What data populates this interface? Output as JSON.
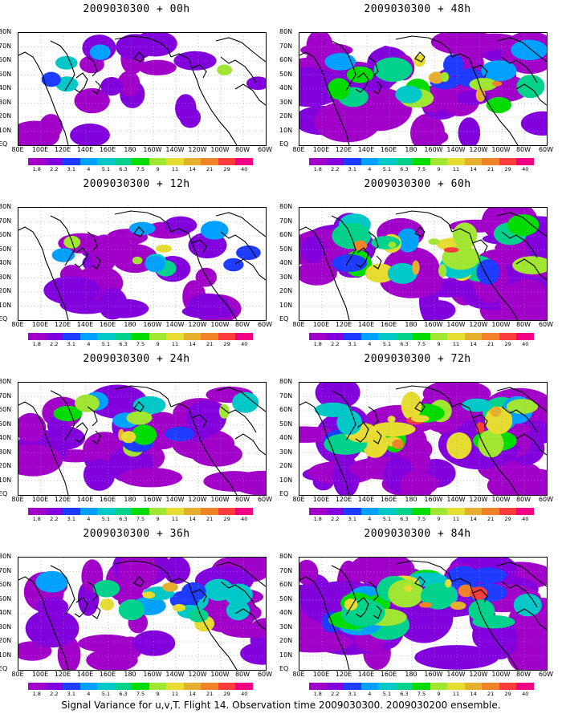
{
  "chart_data": {
    "type": "heatmap",
    "caption": "Signal Variance for u,v,T. Flight 14. Observation time 2009030300. 2009030200 ensemble.",
    "lat_labels": [
      "80N",
      "70N",
      "60N",
      "50N",
      "40N",
      "30N",
      "20N",
      "10N",
      "EQ"
    ],
    "lon_labels": [
      "80E",
      "100E",
      "120E",
      "140E",
      "160E",
      "180",
      "160W",
      "140W",
      "120W",
      "100W",
      "80W",
      "60W"
    ],
    "colorbar": {
      "levels": [
        "1.8",
        "2.2",
        "3.1",
        "4",
        "5.1",
        "6.3",
        "7.5",
        "9",
        "11",
        "14",
        "21",
        "29",
        "40"
      ],
      "colors": [
        "#a000c8",
        "#8200dc",
        "#1e3cff",
        "#00a0ff",
        "#00c8c8",
        "#00d28c",
        "#00dc00",
        "#a0e632",
        "#e6dc32",
        "#e6af2d",
        "#f08228",
        "#fa3c3c",
        "#f00082"
      ]
    },
    "panels": [
      {
        "title": "2009030300 + 00h",
        "intensity": 0.15
      },
      {
        "title": "2009030300 + 48h",
        "intensity": 0.62
      },
      {
        "title": "2009030300 + 12h",
        "intensity": 0.32
      },
      {
        "title": "2009030300 + 60h",
        "intensity": 0.72
      },
      {
        "title": "2009030300 + 24h",
        "intensity": 0.42
      },
      {
        "title": "2009030300 + 72h",
        "intensity": 0.82
      },
      {
        "title": "2009030300 + 36h",
        "intensity": 0.52
      },
      {
        "title": "2009030300 + 84h",
        "intensity": 0.92
      }
    ]
  }
}
